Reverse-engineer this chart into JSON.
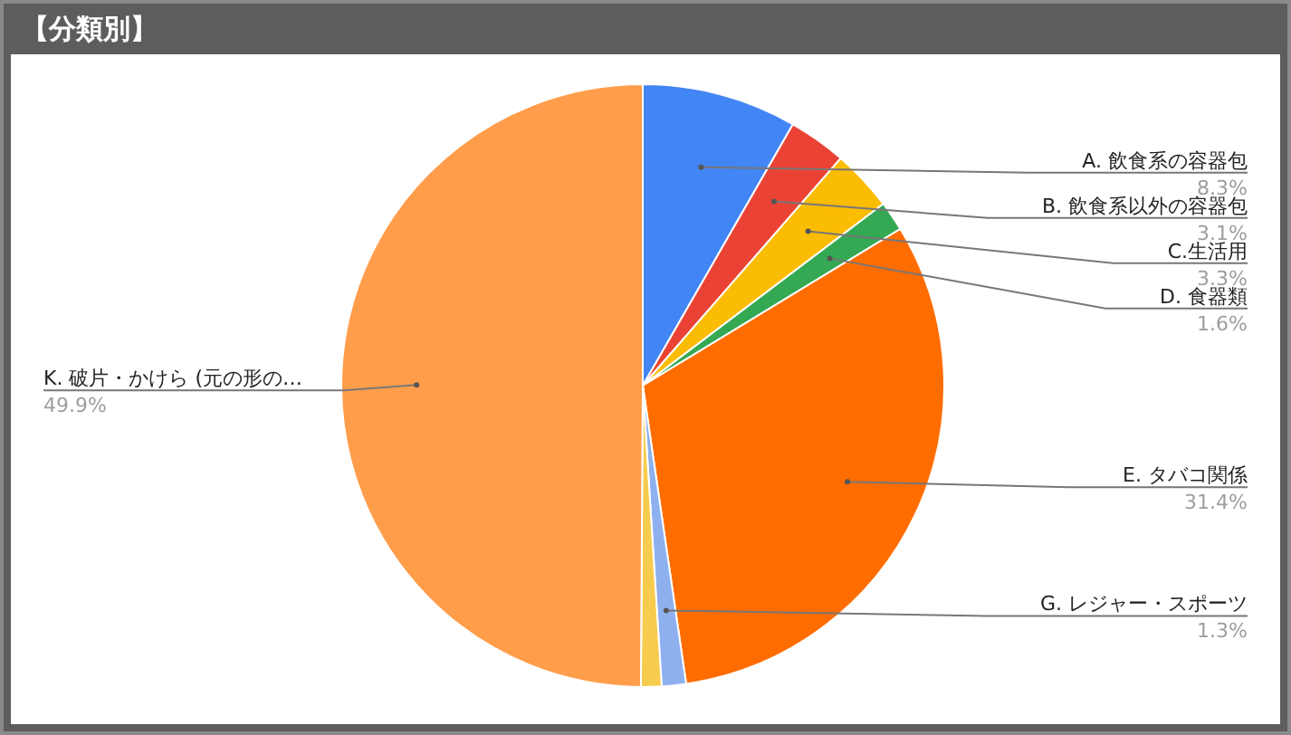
{
  "chart_data": {
    "type": "pie",
    "title": "【分類別】",
    "categories": [
      "A. 飲食系の容器包",
      "B. 飲食系以外の容器包",
      "C.生活用",
      "D. 食器類",
      "E. タバコ関係",
      "G. レジャー・スポーツ",
      null,
      "K. 破片・かけら (元の形の…"
    ],
    "values": [
      8.3,
      3.1,
      3.3,
      1.6,
      31.4,
      1.3,
      1.1,
      49.9
    ],
    "value_labels": [
      "8.3%",
      "3.1%",
      "3.3%",
      "1.6%",
      "31.4%",
      "1.3%",
      null,
      "49.9%"
    ],
    "colors": [
      "#4285f4",
      "#ea4335",
      "#fbbc04",
      "#34a853",
      "#ff6d01",
      "#8fb0ee",
      "#f7cb4d",
      "#ff9d4b"
    ],
    "legend": false
  }
}
